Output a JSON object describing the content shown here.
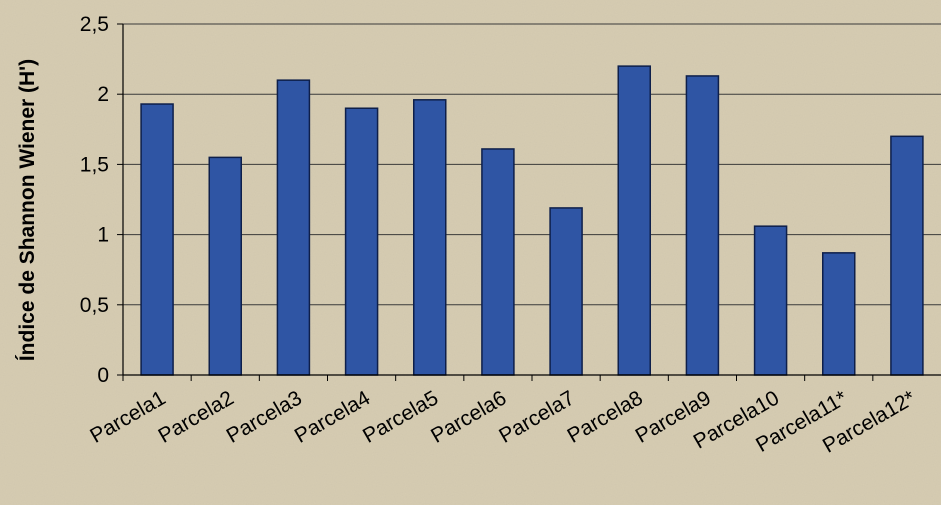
{
  "chart_data": {
    "type": "bar",
    "title": "",
    "xlabel": "",
    "ylabel": "Índice de Shannon Wiener (H')",
    "categories": [
      "Parcela1",
      "Parcela2",
      "Parcela3",
      "Parcela4",
      "Parcela5",
      "Parcela6",
      "Parcela7",
      "Parcela8",
      "Parcela9",
      "Parcela10",
      "Parcela11*",
      "Parcela12*"
    ],
    "values": [
      1.93,
      1.55,
      2.1,
      1.9,
      1.96,
      1.61,
      1.19,
      2.2,
      2.13,
      1.06,
      0.87,
      1.7
    ],
    "ylim": [
      0,
      2.5
    ],
    "yticks": [
      "0",
      "0,5",
      "1",
      "1,5",
      "2",
      "2,5"
    ],
    "grid": true,
    "legend": "none",
    "colors": {
      "bar": "#2f55a4",
      "bar_edge": "#0e1f4a",
      "grid": "#3a3a3a",
      "background": "#d7cdb3"
    }
  }
}
